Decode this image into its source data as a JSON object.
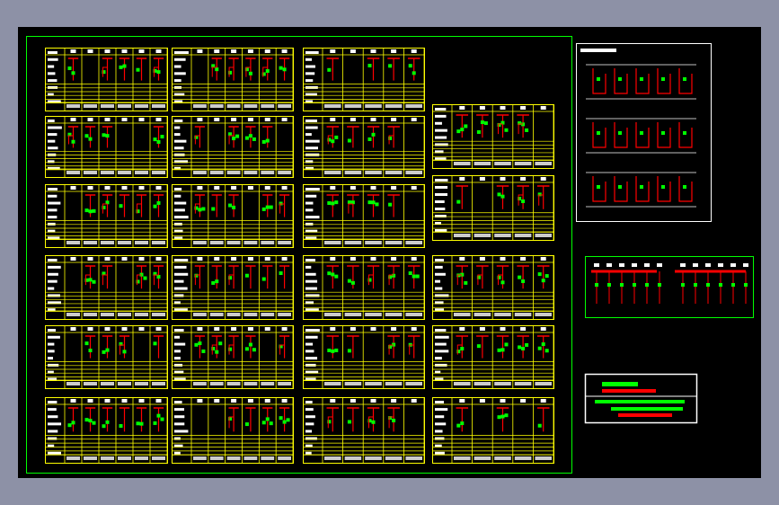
{
  "drawing": {
    "type": "electrical single-line switchgear schematic sheet",
    "colors": {
      "background": "#000000",
      "viewport": "#8d91a6",
      "frame": "#00ff00",
      "panel_border": "#ffff00",
      "busbar": "#ff0000",
      "device": "#00ff00",
      "text": "#ffffff"
    }
  }
}
